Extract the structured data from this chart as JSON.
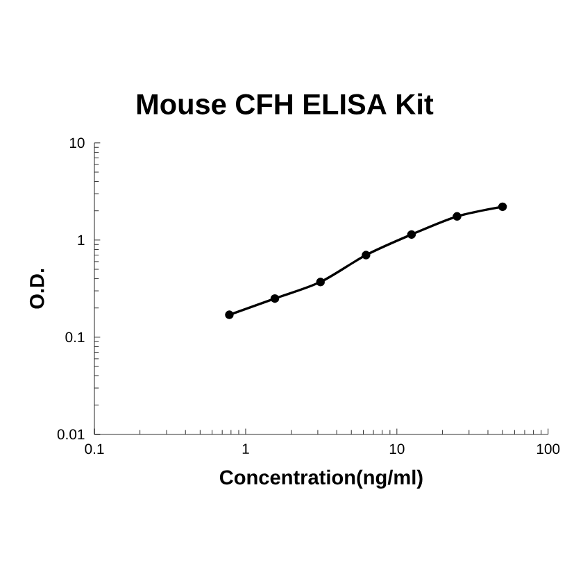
{
  "chart_data": {
    "type": "line",
    "title": "Mouse CFH ELISA Kit",
    "xlabel": "Concentration(ng/ml)",
    "ylabel": "O.D.",
    "x": [
      0.78,
      1.56,
      3.125,
      6.25,
      12.5,
      25,
      50
    ],
    "series": [
      {
        "color": "#000000",
        "values": [
          0.17,
          0.25,
          0.37,
          0.7,
          1.14,
          1.75,
          2.2
        ]
      }
    ],
    "log": "xy",
    "xlim": [
      0.1,
      100
    ],
    "ylim": [
      0.01,
      10
    ],
    "xticks": [
      0.1,
      1,
      10,
      100
    ],
    "yticks": [
      0.01,
      0.1,
      1,
      10
    ],
    "marker": "circle",
    "line_style": "solid"
  }
}
